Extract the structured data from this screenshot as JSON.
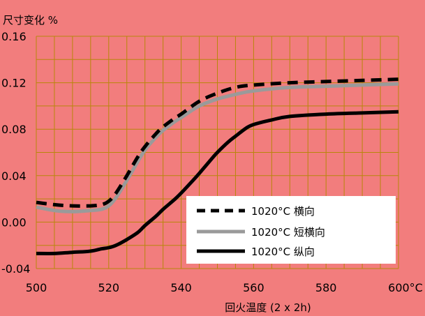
{
  "chart_data": {
    "type": "line",
    "ylabel": "尺寸变化 %",
    "xlabel": "回火温度 (2 x 2h)",
    "xlim": [
      500,
      600
    ],
    "ylim": [
      -0.04,
      0.16
    ],
    "x_ticks": [
      "500",
      "520",
      "540",
      "560",
      "580",
      "600°C"
    ],
    "y_ticks": [
      "-0.04",
      "0.00",
      "0.04",
      "0.08",
      "0.12",
      "0.16"
    ],
    "grid": true,
    "legend_position": "bottom-right",
    "series": [
      {
        "name": "1020°C 横向",
        "style": "dashed",
        "color": "#000000",
        "x": [
          500,
          505,
          510,
          515,
          518,
          520,
          522,
          525,
          528,
          530,
          533,
          535,
          538,
          540,
          545,
          550,
          555,
          560,
          570,
          580,
          590,
          600
        ],
        "y": [
          0.017,
          0.015,
          0.014,
          0.014,
          0.015,
          0.018,
          0.025,
          0.04,
          0.056,
          0.065,
          0.076,
          0.082,
          0.089,
          0.093,
          0.104,
          0.111,
          0.116,
          0.118,
          0.12,
          0.121,
          0.122,
          0.123
        ]
      },
      {
        "name": "1020°C 短横向",
        "style": "solid",
        "color": "#9A9A9A",
        "x": [
          500,
          505,
          510,
          515,
          518,
          520,
          522,
          525,
          528,
          530,
          533,
          535,
          538,
          540,
          545,
          550,
          555,
          560,
          570,
          580,
          590,
          600
        ],
        "y": [
          0.013,
          0.01,
          0.009,
          0.01,
          0.011,
          0.014,
          0.021,
          0.036,
          0.052,
          0.062,
          0.073,
          0.079,
          0.086,
          0.09,
          0.1,
          0.106,
          0.11,
          0.113,
          0.116,
          0.117,
          0.118,
          0.119
        ]
      },
      {
        "name": "1020°C 纵向",
        "style": "solid",
        "color": "#000000",
        "x": [
          500,
          505,
          510,
          515,
          518,
          520,
          522,
          525,
          528,
          530,
          533,
          535,
          538,
          540,
          543,
          545,
          548,
          550,
          553,
          555,
          558,
          560,
          565,
          570,
          580,
          590,
          600
        ],
        "y": [
          -0.027,
          -0.027,
          -0.026,
          -0.025,
          -0.023,
          -0.022,
          -0.02,
          -0.015,
          -0.009,
          -0.003,
          0.005,
          0.011,
          0.019,
          0.025,
          0.035,
          0.042,
          0.053,
          0.06,
          0.069,
          0.074,
          0.081,
          0.084,
          0.088,
          0.091,
          0.093,
          0.094,
          0.095
        ]
      }
    ]
  },
  "colors": {
    "background": "#F27D7D",
    "grid": "#B8860B",
    "legend_bg": "#FFFFFF"
  }
}
